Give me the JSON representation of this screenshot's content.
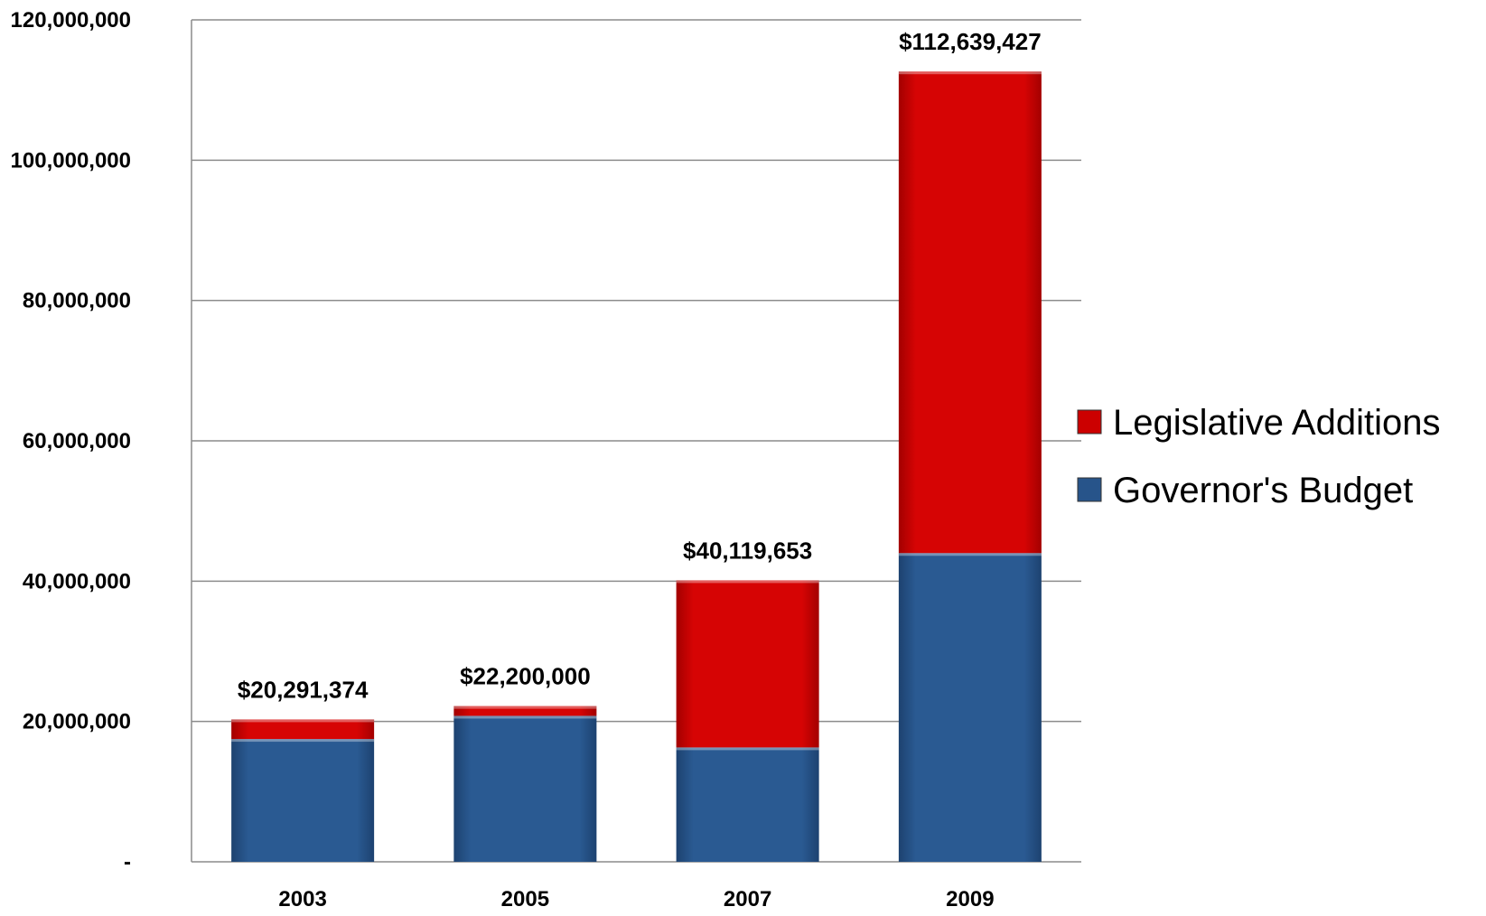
{
  "chart_data": {
    "type": "bar",
    "stacked": true,
    "categories": [
      "2003",
      "2005",
      "2007",
      "2009"
    ],
    "series": [
      {
        "name": "Governor's Budget",
        "color": "#27548a",
        "values": [
          17500000,
          20800000,
          16300000,
          44000000
        ]
      },
      {
        "name": "Legislative Additions",
        "color": "#cc0000",
        "values": [
          2791374,
          1400000,
          23819653,
          68639427
        ]
      }
    ],
    "totals": [
      20291374,
      22200000,
      40119653,
      112639427
    ],
    "total_labels": [
      "$20,291,374",
      "$22,200,000",
      "$40,119,653",
      "$112,639,427"
    ],
    "ylim": [
      0,
      120000000
    ],
    "yticks": [
      0,
      20000000,
      40000000,
      60000000,
      80000000,
      100000000,
      120000000
    ],
    "ytick_labels": [
      "-",
      "20,000,000",
      "40,000,000",
      "60,000,000",
      "80,000,000",
      "100,000,000",
      "120,000,000"
    ],
    "grid": true,
    "legend_position": "right",
    "legend_order": [
      "Legislative Additions",
      "Governor's Budget"
    ],
    "title": "",
    "xlabel": "",
    "ylabel": ""
  }
}
